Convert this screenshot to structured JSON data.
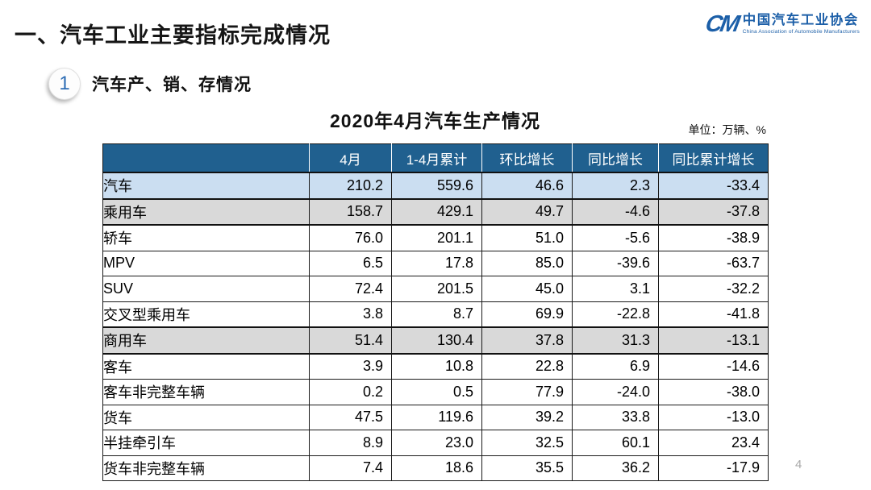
{
  "header": {
    "title": "一、汽车工业主要指标完成情况",
    "logo": {
      "glyph": "CM",
      "name_cn": "中国汽车工业协会",
      "name_en": "China Association of Automobile Manufacturers"
    }
  },
  "section": {
    "badge": "1",
    "title": "汽车产、销、存情况"
  },
  "table": {
    "title": "2020年4月汽车生产情况",
    "unit": "单位：万辆、%",
    "columns": [
      "",
      "4月",
      "1-4月累计",
      "环比增长",
      "同比增长",
      "同比累计增长"
    ],
    "rows": [
      {
        "label": "汽车",
        "indent": 0,
        "style": "blue",
        "values": [
          "210.2",
          "559.6",
          "46.6",
          "2.3",
          "-33.4"
        ]
      },
      {
        "label": "乘用车",
        "indent": 1,
        "style": "gray",
        "values": [
          "158.7",
          "429.1",
          "49.7",
          "-4.6",
          "-37.8"
        ]
      },
      {
        "label": "轿车",
        "indent": 2,
        "style": "white",
        "values": [
          "76.0",
          "201.1",
          "51.0",
          "-5.6",
          "-38.9"
        ]
      },
      {
        "label": "MPV",
        "indent": 2,
        "style": "white",
        "values": [
          "6.5",
          "17.8",
          "85.0",
          "-39.6",
          "-63.7"
        ]
      },
      {
        "label": "SUV",
        "indent": 2,
        "style": "white",
        "values": [
          "72.4",
          "201.5",
          "45.0",
          "3.1",
          "-32.2"
        ]
      },
      {
        "label": "交叉型乘用车",
        "indent": 2,
        "style": "white",
        "values": [
          "3.8",
          "8.7",
          "69.9",
          "-22.8",
          "-41.8"
        ]
      },
      {
        "label": "商用车",
        "indent": 1,
        "style": "gray",
        "values": [
          "51.4",
          "130.4",
          "37.8",
          "31.3",
          "-13.1"
        ]
      },
      {
        "label": "客车",
        "indent": 2,
        "style": "white",
        "values": [
          "3.9",
          "10.8",
          "22.8",
          "6.9",
          "-14.6"
        ]
      },
      {
        "label": "客车非完整车辆",
        "indent": 3,
        "style": "white",
        "values": [
          "0.2",
          "0.5",
          "77.9",
          "-24.0",
          "-38.0"
        ]
      },
      {
        "label": "货车",
        "indent": 2,
        "style": "white",
        "values": [
          "47.5",
          "119.6",
          "39.2",
          "33.8",
          "-13.0"
        ]
      },
      {
        "label": "半挂牵引车",
        "indent": 3,
        "style": "white",
        "values": [
          "8.9",
          "23.0",
          "32.5",
          "60.1",
          "23.4"
        ]
      },
      {
        "label": "货车非完整车辆",
        "indent": 3,
        "style": "white",
        "values": [
          "7.4",
          "18.6",
          "35.5",
          "36.2",
          "-17.9"
        ]
      }
    ]
  },
  "colors": {
    "header_bg": "#20608f",
    "row_highlight_blue": "#cbdef1",
    "row_highlight_gray": "#d9d9d9",
    "logo_blue": "#1c5fa8"
  },
  "page": {
    "number": "4"
  }
}
